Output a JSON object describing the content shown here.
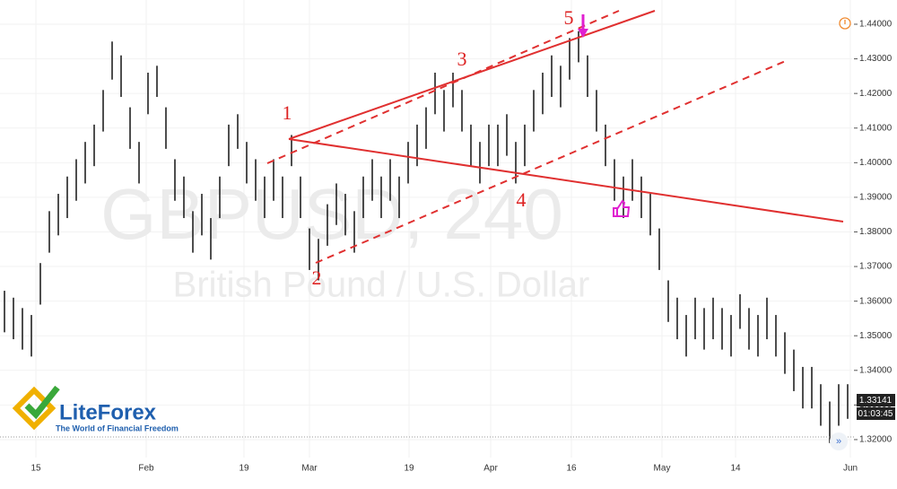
{
  "chart_data": {
    "type": "ohlc",
    "symbol": "GBPUSD, 240",
    "description": "British Pound / U.S. Dollar",
    "color": "#222222",
    "high": [
      1.363,
      1.361,
      1.358,
      1.356,
      1.371,
      1.386,
      1.391,
      1.396,
      1.401,
      1.406,
      1.411,
      1.421,
      1.435,
      1.431,
      1.416,
      1.406,
      1.426,
      1.428,
      1.416,
      1.401,
      1.396,
      1.386,
      1.391,
      1.384,
      1.396,
      1.411,
      1.414,
      1.406,
      1.401,
      1.396,
      1.401,
      1.396,
      1.408,
      1.396,
      1.381,
      1.378,
      1.388,
      1.394,
      1.391,
      1.386,
      1.396,
      1.401,
      1.396,
      1.401,
      1.396,
      1.406,
      1.411,
      1.416,
      1.426,
      1.421,
      1.426,
      1.421,
      1.411,
      1.406,
      1.411,
      1.411,
      1.414,
      1.406,
      1.411,
      1.421,
      1.426,
      1.431,
      1.428,
      1.436,
      1.438,
      1.431,
      1.421,
      1.411,
      1.401,
      1.396,
      1.401,
      1.396,
      1.391,
      1.381,
      1.366,
      1.361,
      1.356,
      1.361,
      1.358,
      1.361,
      1.358,
      1.356,
      1.362,
      1.358,
      1.356,
      1.361,
      1.356,
      1.351,
      1.346,
      1.341,
      1.341,
      1.336,
      1.331,
      1.336,
      1.336
    ],
    "low": [
      1.351,
      1.349,
      1.346,
      1.344,
      1.359,
      1.374,
      1.379,
      1.384,
      1.389,
      1.394,
      1.399,
      1.409,
      1.424,
      1.419,
      1.404,
      1.394,
      1.414,
      1.419,
      1.404,
      1.389,
      1.384,
      1.374,
      1.379,
      1.372,
      1.384,
      1.399,
      1.404,
      1.394,
      1.389,
      1.384,
      1.389,
      1.384,
      1.399,
      1.384,
      1.369,
      1.366,
      1.376,
      1.382,
      1.379,
      1.374,
      1.384,
      1.389,
      1.384,
      1.389,
      1.384,
      1.394,
      1.399,
      1.404,
      1.414,
      1.409,
      1.416,
      1.409,
      1.399,
      1.394,
      1.399,
      1.399,
      1.402,
      1.394,
      1.399,
      1.409,
      1.414,
      1.419,
      1.416,
      1.424,
      1.429,
      1.419,
      1.409,
      1.399,
      1.389,
      1.384,
      1.389,
      1.384,
      1.379,
      1.369,
      1.354,
      1.349,
      1.344,
      1.349,
      1.346,
      1.349,
      1.346,
      1.344,
      1.352,
      1.346,
      1.344,
      1.349,
      1.344,
      1.339,
      1.334,
      1.329,
      1.329,
      1.324,
      1.319,
      1.324,
      1.326
    ],
    "xlim": [
      0,
      95
    ],
    "xticks": [
      {
        "value": 4,
        "label": "15"
      },
      {
        "value": 16.3,
        "label": "Feb"
      },
      {
        "value": 27.2,
        "label": "19"
      },
      {
        "value": 34.5,
        "label": "Mar"
      },
      {
        "value": 45.6,
        "label": "19"
      },
      {
        "value": 54.7,
        "label": "Apr"
      },
      {
        "value": 63.7,
        "label": "16"
      },
      {
        "value": 73.8,
        "label": "May"
      },
      {
        "value": 82,
        "label": "14"
      },
      {
        "value": 94.8,
        "label": "Jun"
      }
    ],
    "ylim": [
      1.3148,
      1.447
    ],
    "yticks": [
      {
        "value": 1.32,
        "label": "1.32000"
      },
      {
        "value": 1.33,
        "label": "1.33000"
      },
      {
        "value": 1.34,
        "label": "1.34000"
      },
      {
        "value": 1.35,
        "label": "1.35000"
      },
      {
        "value": 1.36,
        "label": "1.36000"
      },
      {
        "value": 1.37,
        "label": "1.37000"
      },
      {
        "value": 1.38,
        "label": "1.38000"
      },
      {
        "value": 1.39,
        "label": "1.39000"
      },
      {
        "value": 1.4,
        "label": "1.40000"
      },
      {
        "value": 1.41,
        "label": "1.41000"
      },
      {
        "value": 1.42,
        "label": "1.42000"
      },
      {
        "value": 1.43,
        "label": "1.43000"
      },
      {
        "value": 1.44,
        "label": "1.44000"
      }
    ],
    "grid": true,
    "last_price": "1.33141",
    "countdown": "01:03:45",
    "annotations": [
      "1",
      "2",
      "3",
      "4",
      "5"
    ]
  },
  "logo": {
    "name": "LiteForex",
    "tagline": "The World of Financial Freedom"
  }
}
